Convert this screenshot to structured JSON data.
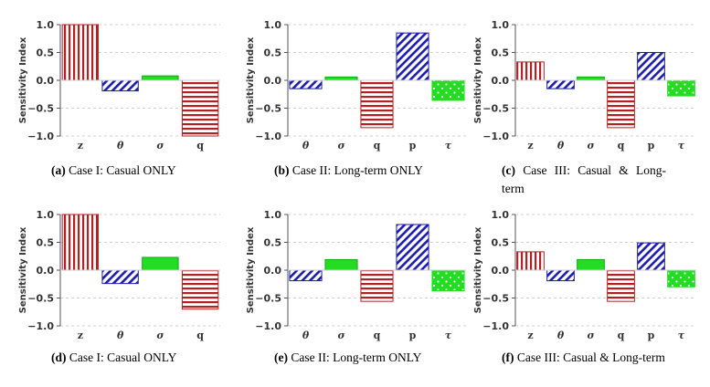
{
  "colors": {
    "red": "#b22222",
    "blue": "#1c1cb0",
    "green": "#22dd22",
    "grid": "#d0d0d0",
    "axis": "#555555"
  },
  "chart_data": [
    {
      "type": "bar",
      "panel": "a",
      "caption_tag": "(a)",
      "caption_text": "Case I: Casual ONLY",
      "ylabel": "Sensitivity Index",
      "ylim": [
        -1.0,
        1.0
      ],
      "yticks": [
        "1.0",
        "0.5",
        "0.0",
        "−0.5",
        "−1.0"
      ],
      "grid": true,
      "categories": [
        "z",
        "θ",
        "σ",
        "q"
      ],
      "patterns": [
        "vertical",
        "diagonal",
        "solid",
        "horizontal"
      ],
      "values": [
        1.0,
        -0.19,
        0.08,
        -1.0
      ]
    },
    {
      "type": "bar",
      "panel": "b",
      "caption_tag": "(b)",
      "caption_text": "Case II: Long-term ONLY",
      "ylabel": "Sensitivity Index",
      "ylim": [
        -1.0,
        1.0
      ],
      "yticks": [
        "1.0",
        "0.5",
        "0.0",
        "−0.5",
        "−1.0"
      ],
      "grid": true,
      "categories": [
        "θ",
        "σ",
        "q",
        "p",
        "τ"
      ],
      "patterns": [
        "diagonal",
        "solid",
        "horizontal",
        "diagonal",
        "dots"
      ],
      "values": [
        -0.15,
        0.06,
        -0.85,
        0.85,
        -0.36
      ]
    },
    {
      "type": "bar",
      "panel": "c",
      "caption_tag": "(c)",
      "caption_text": "Case III: Casual & Long-term",
      "ylabel": "Sensitivity Index",
      "ylim": [
        -1.0,
        1.0
      ],
      "yticks": [
        "1.0",
        "0.5",
        "0.0",
        "−0.5",
        "−1.0"
      ],
      "grid": true,
      "categories": [
        "z",
        "θ",
        "σ",
        "q",
        "p",
        "τ"
      ],
      "patterns": [
        "vertical",
        "diagonal",
        "solid",
        "horizontal",
        "diagonal",
        "dots"
      ],
      "values": [
        0.33,
        -0.15,
        0.06,
        -0.85,
        0.5,
        -0.28
      ]
    },
    {
      "type": "bar",
      "panel": "d",
      "caption_tag": "(d)",
      "caption_text": "Case I: Casual ONLY",
      "ylabel": "Sensitivity Index",
      "ylim": [
        -1.0,
        1.0
      ],
      "yticks": [
        "1.0",
        "0.5",
        "0.0",
        "−0.5",
        "−1.0"
      ],
      "grid": true,
      "categories": [
        "z",
        "θ",
        "σ",
        "q"
      ],
      "patterns": [
        "vertical",
        "diagonal",
        "solid",
        "horizontal"
      ],
      "values": [
        1.0,
        -0.24,
        0.23,
        -0.7
      ]
    },
    {
      "type": "bar",
      "panel": "e",
      "caption_tag": "(e)",
      "caption_text": "Case II: Long-term ONLY",
      "ylabel": "Sensitivity Index",
      "ylim": [
        -1.0,
        1.0
      ],
      "yticks": [
        "1.0",
        "0.5",
        "0.0",
        "−0.5",
        "−1.0"
      ],
      "grid": true,
      "categories": [
        "θ",
        "σ",
        "q",
        "p",
        "τ"
      ],
      "patterns": [
        "diagonal",
        "solid",
        "horizontal",
        "diagonal",
        "dots"
      ],
      "values": [
        -0.19,
        0.19,
        -0.56,
        0.82,
        -0.37
      ]
    },
    {
      "type": "bar",
      "panel": "f",
      "caption_tag": "(f)",
      "caption_text": "Case III: Casual & Long-term",
      "ylabel": "Sensitivity Index",
      "ylim": [
        -1.0,
        1.0
      ],
      "yticks": [
        "1.0",
        "0.5",
        "0.0",
        "−0.5",
        "−1.0"
      ],
      "grid": true,
      "categories": [
        "z",
        "θ",
        "σ",
        "q",
        "p",
        "τ"
      ],
      "patterns": [
        "vertical",
        "diagonal",
        "solid",
        "horizontal",
        "diagonal",
        "dots"
      ],
      "values": [
        0.33,
        -0.19,
        0.19,
        -0.56,
        0.49,
        -0.3
      ]
    }
  ]
}
